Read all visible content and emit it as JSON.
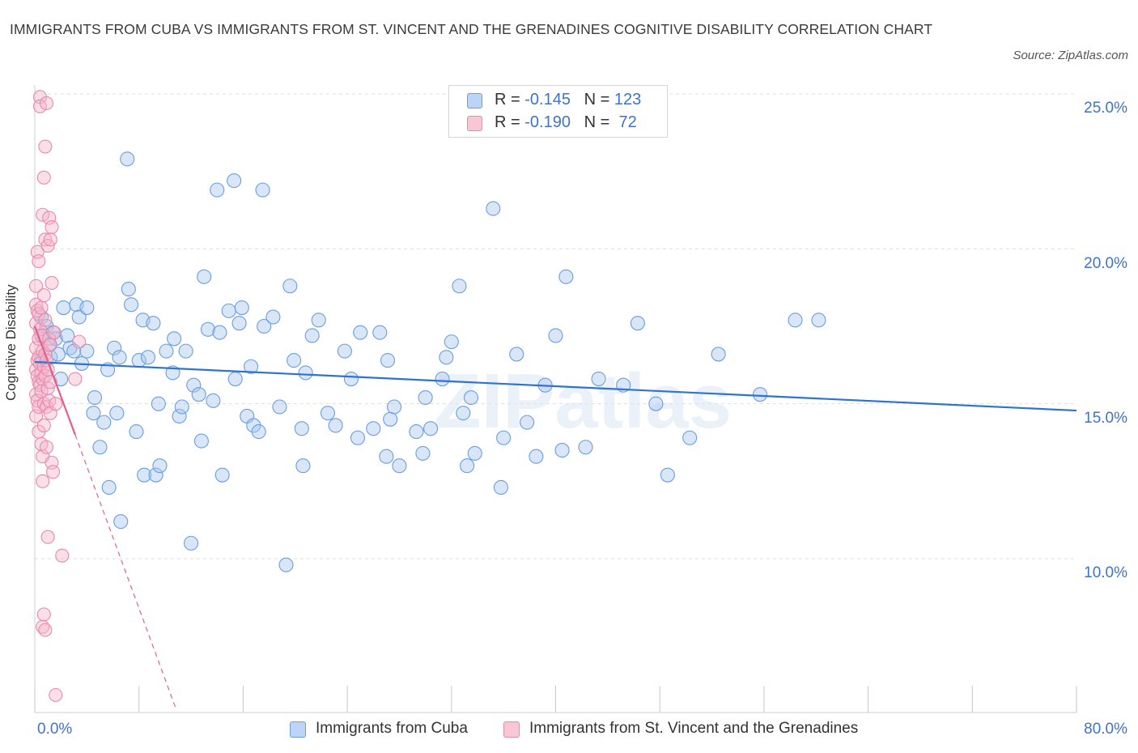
{
  "title": "IMMIGRANTS FROM CUBA VS IMMIGRANTS FROM ST. VINCENT AND THE GRENADINES COGNITIVE DISABILITY CORRELATION CHART",
  "source": "Source: ZipAtlas.com",
  "watermark": "ZIPatlas",
  "colors": {
    "blue_fill": "#a9c8f0",
    "blue_stroke": "#6a9edf",
    "blue_line": "#2e73d0",
    "pink_fill": "#f5b6cb",
    "pink_stroke": "#e88aab",
    "pink_line": "#e0608c",
    "tick_text": "#3d73cc",
    "grid": "#dddddd"
  },
  "legend": {
    "rows": [
      {
        "r_label": "R = ",
        "r_value": "-0.145",
        "n_label": "N = ",
        "n_value": "123",
        "color": "blue"
      },
      {
        "r_label": "R = ",
        "r_value": "-0.190",
        "n_label": "N = ",
        "n_value": " 72",
        "color": "pink"
      }
    ]
  },
  "bottom_legend": [
    {
      "label": "Immigrants from Cuba"
    },
    {
      "label": "Immigrants from St. Vincent and the Grenadines"
    }
  ],
  "chart_data": {
    "type": "scatter",
    "title": "IMMIGRANTS FROM CUBA VS IMMIGRANTS FROM ST. VINCENT AND THE GRENADINES COGNITIVE DISABILITY CORRELATION CHART",
    "xlabel": "",
    "ylabel": "Cognitive Disability",
    "xlim": [
      0,
      80
    ],
    "ylim": [
      5,
      25.5
    ],
    "x_tick_labels": [
      {
        "value": 0,
        "label": "0.0%"
      },
      {
        "value": 80,
        "label": "80.0%"
      }
    ],
    "y_tick_labels": [
      {
        "value": 10,
        "label": "10.0%"
      },
      {
        "value": 15,
        "label": "15.0%"
      },
      {
        "value": 20,
        "label": "20.0%"
      },
      {
        "value": 25,
        "label": "25.0%"
      }
    ],
    "series": [
      {
        "name": "Immigrants from Cuba",
        "color": "blue",
        "trend": {
          "x": [
            0,
            80
          ],
          "y": [
            16.35,
            14.78
          ],
          "style": "solid"
        },
        "points": [
          [
            0.5,
            17.8
          ],
          [
            0.5,
            16.4
          ],
          [
            0.7,
            17.2
          ],
          [
            0.9,
            17.5
          ],
          [
            1.1,
            16.9
          ],
          [
            1.2,
            16.5
          ],
          [
            1.4,
            17.3
          ],
          [
            1.6,
            17.1
          ],
          [
            1.8,
            16.6
          ],
          [
            2.0,
            15.8
          ],
          [
            2.2,
            18.1
          ],
          [
            2.5,
            17.2
          ],
          [
            2.7,
            16.8
          ],
          [
            3.0,
            16.7
          ],
          [
            3.2,
            18.2
          ],
          [
            3.4,
            17.8
          ],
          [
            3.6,
            16.3
          ],
          [
            4.0,
            18.1
          ],
          [
            4.0,
            16.7
          ],
          [
            4.5,
            14.7
          ],
          [
            4.6,
            15.2
          ],
          [
            5.0,
            13.6
          ],
          [
            5.3,
            14.4
          ],
          [
            5.6,
            16.1
          ],
          [
            5.7,
            12.3
          ],
          [
            6.1,
            16.8
          ],
          [
            6.3,
            14.7
          ],
          [
            6.5,
            16.5
          ],
          [
            6.6,
            11.2
          ],
          [
            7.1,
            22.9
          ],
          [
            7.2,
            18.7
          ],
          [
            7.4,
            18.2
          ],
          [
            7.8,
            14.1
          ],
          [
            8.0,
            16.4
          ],
          [
            8.3,
            17.7
          ],
          [
            8.4,
            12.7
          ],
          [
            8.7,
            16.5
          ],
          [
            9.1,
            17.6
          ],
          [
            9.3,
            12.7
          ],
          [
            9.5,
            15.0
          ],
          [
            9.6,
            13.0
          ],
          [
            10.1,
            16.7
          ],
          [
            10.6,
            16.0
          ],
          [
            10.7,
            17.1
          ],
          [
            11.1,
            14.6
          ],
          [
            11.3,
            14.9
          ],
          [
            11.6,
            16.7
          ],
          [
            12.0,
            10.5
          ],
          [
            12.2,
            15.6
          ],
          [
            12.6,
            15.3
          ],
          [
            12.8,
            13.8
          ],
          [
            13.0,
            19.1
          ],
          [
            13.3,
            17.4
          ],
          [
            13.7,
            15.1
          ],
          [
            14.0,
            21.9
          ],
          [
            14.2,
            17.3
          ],
          [
            14.4,
            12.7
          ],
          [
            14.9,
            18.0
          ],
          [
            15.3,
            22.2
          ],
          [
            15.4,
            15.8
          ],
          [
            15.7,
            17.6
          ],
          [
            15.9,
            18.1
          ],
          [
            16.3,
            14.6
          ],
          [
            16.6,
            16.2
          ],
          [
            16.8,
            14.3
          ],
          [
            17.2,
            14.1
          ],
          [
            17.5,
            21.9
          ],
          [
            17.6,
            17.5
          ],
          [
            18.3,
            17.8
          ],
          [
            18.8,
            14.9
          ],
          [
            19.3,
            9.8
          ],
          [
            19.6,
            18.8
          ],
          [
            19.9,
            16.4
          ],
          [
            20.5,
            14.2
          ],
          [
            20.6,
            13.0
          ],
          [
            20.8,
            16.0
          ],
          [
            21.3,
            17.2
          ],
          [
            21.8,
            17.7
          ],
          [
            22.5,
            14.7
          ],
          [
            23.1,
            14.3
          ],
          [
            23.8,
            16.7
          ],
          [
            24.3,
            15.8
          ],
          [
            24.8,
            13.9
          ],
          [
            25.0,
            17.3
          ],
          [
            26.0,
            14.2
          ],
          [
            26.5,
            17.3
          ],
          [
            27.0,
            13.3
          ],
          [
            27.1,
            16.4
          ],
          [
            27.3,
            14.5
          ],
          [
            27.6,
            14.9
          ],
          [
            28.0,
            13.0
          ],
          [
            29.3,
            14.1
          ],
          [
            29.8,
            13.4
          ],
          [
            30.0,
            15.2
          ],
          [
            30.4,
            14.2
          ],
          [
            31.3,
            15.8
          ],
          [
            31.6,
            16.5
          ],
          [
            32.0,
            17.0
          ],
          [
            32.6,
            18.8
          ],
          [
            32.9,
            14.7
          ],
          [
            33.2,
            13.0
          ],
          [
            33.5,
            15.2
          ],
          [
            33.8,
            13.4
          ],
          [
            35.2,
            21.3
          ],
          [
            35.8,
            12.3
          ],
          [
            36.0,
            13.9
          ],
          [
            37.0,
            16.6
          ],
          [
            37.8,
            14.4
          ],
          [
            38.5,
            13.3
          ],
          [
            39.2,
            15.6
          ],
          [
            40.0,
            17.2
          ],
          [
            40.5,
            13.5
          ],
          [
            40.8,
            19.1
          ],
          [
            42.3,
            13.6
          ],
          [
            43.3,
            15.8
          ],
          [
            45.2,
            15.6
          ],
          [
            46.3,
            17.6
          ],
          [
            47.7,
            15.0
          ],
          [
            48.6,
            12.7
          ],
          [
            50.3,
            13.9
          ],
          [
            52.5,
            16.6
          ],
          [
            55.7,
            15.3
          ],
          [
            58.4,
            17.7
          ],
          [
            60.2,
            17.7
          ]
        ]
      },
      {
        "name": "Immigrants from St. Vincent and the Grenadines",
        "color": "pink",
        "trend": {
          "x": [
            0,
            3.1
          ],
          "y": [
            17.5,
            14.0
          ],
          "style": "solid",
          "extension": {
            "x": [
              3.1,
              10.8
            ],
            "y": [
              14.0,
              5.2
            ],
            "style": "dashed"
          }
        },
        "points": [
          [
            0.1,
            18.8
          ],
          [
            0.1,
            18.2
          ],
          [
            0.1,
            17.6
          ],
          [
            0.1,
            16.8
          ],
          [
            0.1,
            16.1
          ],
          [
            0.1,
            15.3
          ],
          [
            0.1,
            14.6
          ],
          [
            0.2,
            19.9
          ],
          [
            0.2,
            18.0
          ],
          [
            0.2,
            16.4
          ],
          [
            0.2,
            15.9
          ],
          [
            0.2,
            15.1
          ],
          [
            0.3,
            19.6
          ],
          [
            0.3,
            17.9
          ],
          [
            0.3,
            17.1
          ],
          [
            0.3,
            16.5
          ],
          [
            0.3,
            15.7
          ],
          [
            0.3,
            14.9
          ],
          [
            0.3,
            14.1
          ],
          [
            0.4,
            24.9
          ],
          [
            0.4,
            24.6
          ],
          [
            0.4,
            17.4
          ],
          [
            0.4,
            16.3
          ],
          [
            0.4,
            15.6
          ],
          [
            0.5,
            18.1
          ],
          [
            0.5,
            17.2
          ],
          [
            0.5,
            16.0
          ],
          [
            0.5,
            15.4
          ],
          [
            0.5,
            13.7
          ],
          [
            0.6,
            21.1
          ],
          [
            0.6,
            16.7
          ],
          [
            0.6,
            15.8
          ],
          [
            0.6,
            13.3
          ],
          [
            0.6,
            12.5
          ],
          [
            0.6,
            7.8
          ],
          [
            0.7,
            22.3
          ],
          [
            0.7,
            18.5
          ],
          [
            0.7,
            16.2
          ],
          [
            0.7,
            15.0
          ],
          [
            0.7,
            14.3
          ],
          [
            0.7,
            8.2
          ],
          [
            0.8,
            23.3
          ],
          [
            0.8,
            20.3
          ],
          [
            0.8,
            17.7
          ],
          [
            0.8,
            16.6
          ],
          [
            0.8,
            15.9
          ],
          [
            0.8,
            7.7
          ],
          [
            0.9,
            24.7
          ],
          [
            0.9,
            16.4
          ],
          [
            0.9,
            14.9
          ],
          [
            0.9,
            13.6
          ],
          [
            1.0,
            20.1
          ],
          [
            1.0,
            16.1
          ],
          [
            1.0,
            15.5
          ],
          [
            1.0,
            10.7
          ],
          [
            1.1,
            21.0
          ],
          [
            1.1,
            17.1
          ],
          [
            1.1,
            15.1
          ],
          [
            1.2,
            20.3
          ],
          [
            1.2,
            16.9
          ],
          [
            1.2,
            15.7
          ],
          [
            1.2,
            14.7
          ],
          [
            1.3,
            20.7
          ],
          [
            1.3,
            18.9
          ],
          [
            1.3,
            13.1
          ],
          [
            1.4,
            12.8
          ],
          [
            1.5,
            17.3
          ],
          [
            1.6,
            15.0
          ],
          [
            2.1,
            10.1
          ],
          [
            1.6,
            5.6
          ],
          [
            3.1,
            15.8
          ],
          [
            3.4,
            17.0
          ]
        ]
      }
    ]
  }
}
